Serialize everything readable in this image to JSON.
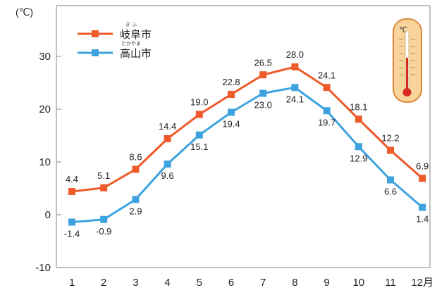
{
  "chart_data": {
    "type": "line",
    "title": "",
    "xlabel": "",
    "ylabel": "",
    "y_unit": "(℃)",
    "month_suffix": "月",
    "categories": [
      "1",
      "2",
      "3",
      "4",
      "5",
      "6",
      "7",
      "8",
      "9",
      "10",
      "11",
      "12"
    ],
    "ylim": [
      -10,
      36
    ],
    "yticks": [
      "-10",
      "0",
      "10",
      "20",
      "30"
    ],
    "grid": false,
    "legend_position": "top-left",
    "series": [
      {
        "name": "岐阜市",
        "ruby": "ぎ ふ",
        "color": "#ee5a2a",
        "values": [
          4.4,
          5.1,
          8.6,
          14.4,
          19.0,
          22.8,
          26.5,
          28.0,
          24.1,
          18.1,
          12.2,
          6.9
        ],
        "labels": [
          "4.4",
          "5.1",
          "8.6",
          "14.4",
          "19.0",
          "22.8",
          "26.5",
          "28.0",
          "24.1",
          "18.1",
          "12.2",
          "6.9"
        ]
      },
      {
        "name": "高山市",
        "ruby": "たかやま",
        "color": "#3da3df",
        "values": [
          -1.4,
          -0.9,
          2.9,
          9.6,
          15.1,
          19.4,
          23.0,
          24.1,
          19.7,
          12.9,
          6.6,
          1.4
        ],
        "labels": [
          "-1.4",
          "-0.9",
          "2.9",
          "9.6",
          "15.1",
          "19.4",
          "23.0",
          "24.1",
          "19.7",
          "12.9",
          "6.6",
          "1.4"
        ]
      }
    ]
  },
  "thermometer": {
    "icon": "thermometer-icon",
    "unit_label": "℃",
    "colors": {
      "body": "#f8d49a",
      "outline": "#d9893a",
      "mercury": "#d62a1e"
    }
  }
}
